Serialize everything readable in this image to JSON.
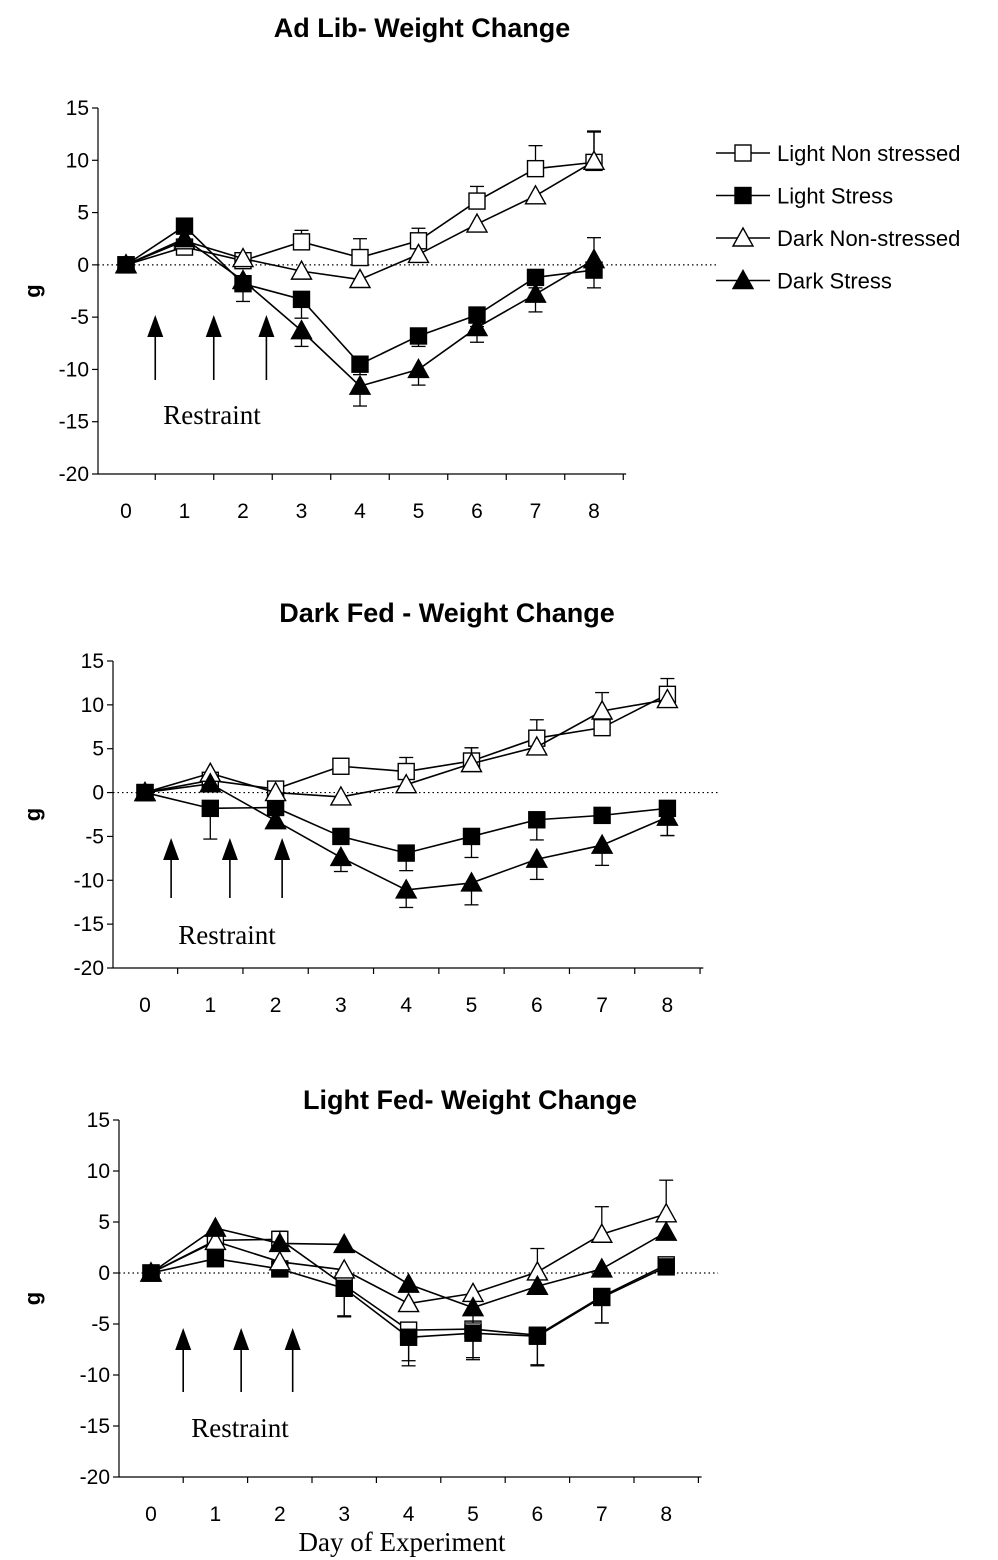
{
  "legend": [
    {
      "name": "Light Non stressed",
      "marker": "square",
      "fill": "#ffffff"
    },
    {
      "name": "Light Stress",
      "marker": "square",
      "fill": "#000000"
    },
    {
      "name": "Dark Non-stressed",
      "marker": "triangle",
      "fill": "#ffffff"
    },
    {
      "name": "Dark Stress",
      "marker": "triangle",
      "fill": "#000000"
    }
  ],
  "xlabel_shared": "Day of Experiment",
  "chart_data": [
    {
      "type": "line",
      "title": "Ad Lib- Weight Change",
      "ylabel": "g",
      "xlabel": "",
      "x": [
        0,
        1,
        2,
        3,
        4,
        5,
        6,
        7,
        8
      ],
      "ylim": [
        -20,
        15
      ],
      "yticks": [
        15,
        10,
        5,
        0,
        -5,
        -10,
        -15,
        -20
      ],
      "annotation": "Restraint",
      "restraint_days": [
        0.5,
        1.5,
        2.4
      ],
      "legend_position": "right",
      "series": [
        {
          "name": "Light Non stressed",
          "values": [
            0,
            1.7,
            0.4,
            2.2,
            0.7,
            2.3,
            6.1,
            9.2,
            9.8
          ],
          "err": [
            0,
            0,
            0,
            1.1,
            1.8,
            1.2,
            1.4,
            2.2,
            2.9
          ]
        },
        {
          "name": "Light Stress",
          "values": [
            0,
            3.7,
            -1.8,
            -3.3,
            -9.5,
            -6.8,
            -4.8,
            -1.2,
            -0.5
          ],
          "err": [
            0,
            0,
            1.7,
            1.8,
            1.0,
            1.0,
            1.1,
            1.0,
            1.7
          ]
        },
        {
          "name": "Dark Non-stressed",
          "values": [
            0,
            2.3,
            0.6,
            -0.6,
            -1.4,
            1.0,
            3.9,
            6.6,
            9.9
          ],
          "err": [
            0,
            0,
            0,
            0,
            0,
            0,
            0,
            0,
            2.9
          ]
        },
        {
          "name": "Dark Stress",
          "values": [
            0,
            2.5,
            -1.5,
            -6.3,
            -11.6,
            -10.0,
            -6.0,
            -2.8,
            0.5
          ],
          "err": [
            0,
            0,
            0,
            1.5,
            1.9,
            1.5,
            1.4,
            1.7,
            2.1
          ]
        }
      ]
    },
    {
      "type": "line",
      "title": "Dark Fed  - Weight Change",
      "ylabel": "g",
      "xlabel": "",
      "x": [
        0,
        1,
        2,
        3,
        4,
        5,
        6,
        7,
        8
      ],
      "ylim": [
        -20,
        15
      ],
      "yticks": [
        15,
        10,
        5,
        0,
        -5,
        -10,
        -15,
        -20
      ],
      "annotation": "Restraint",
      "restraint_days": [
        0.4,
        1.3,
        2.1
      ],
      "series": [
        {
          "name": "Light Non stressed",
          "values": [
            0,
            1.4,
            0.4,
            3.0,
            2.4,
            3.6,
            6.2,
            7.4,
            11.2
          ],
          "err": [
            0,
            0,
            0,
            0,
            1.6,
            1.5,
            2.1,
            0,
            1.8
          ]
        },
        {
          "name": "Light Stress",
          "values": [
            0,
            -1.8,
            -1.7,
            -5.0,
            -6.9,
            -5.0,
            -3.1,
            -2.6,
            -1.8
          ],
          "err": [
            0,
            3.5,
            0,
            0,
            2.0,
            2.4,
            2.3,
            0,
            3.1
          ]
        },
        {
          "name": "Dark Non-stressed",
          "values": [
            0,
            2.2,
            0.0,
            -0.5,
            0.9,
            3.3,
            5.2,
            9.3,
            10.6
          ],
          "err": [
            0,
            0,
            0,
            0,
            0,
            1.8,
            0,
            2.1,
            0
          ]
        },
        {
          "name": "Dark Stress",
          "values": [
            0,
            1.0,
            -3.2,
            -7.4,
            -11.1,
            -10.3,
            -7.6,
            -6.0,
            -2.8
          ],
          "err": [
            0,
            0,
            0,
            1.6,
            2.0,
            2.5,
            2.3,
            2.3,
            2.1
          ]
        }
      ]
    },
    {
      "type": "line",
      "title": "Light Fed- Weight Change",
      "ylabel": "g",
      "xlabel": "Day of Experiment",
      "x": [
        0,
        1,
        2,
        3,
        4,
        5,
        6,
        7,
        8
      ],
      "ylim": [
        -20,
        15
      ],
      "yticks": [
        15,
        10,
        5,
        0,
        -5,
        -10,
        -15,
        -20
      ],
      "annotation": "Restraint",
      "restraint_days": [
        0.5,
        1.4,
        2.2
      ],
      "series": [
        {
          "name": "Light Non stressed",
          "values": [
            0,
            3.2,
            3.3,
            -1.2,
            -5.6,
            -5.5,
            -6.1,
            -2.3,
            0.8
          ],
          "err": [
            0,
            0,
            0,
            3.0,
            3.0,
            2.8,
            2.9,
            2.6,
            0
          ]
        },
        {
          "name": "Light Stress",
          "values": [
            0,
            1.4,
            0.4,
            -1.5,
            -6.3,
            -5.9,
            -6.2,
            -2.4,
            0.6
          ],
          "err": [
            0,
            0,
            2.0,
            2.8,
            2.8,
            2.6,
            2.9,
            2.5,
            0
          ]
        },
        {
          "name": "Dark Non-stressed",
          "values": [
            0,
            3.1,
            1.1,
            0.3,
            -3.0,
            -2.0,
            0.1,
            3.8,
            5.8
          ],
          "err": [
            0,
            0,
            0,
            0,
            0,
            2.9,
            2.3,
            2.7,
            3.3
          ]
        },
        {
          "name": "Dark Stress",
          "values": [
            0,
            4.4,
            2.9,
            2.8,
            -1.1,
            -3.4,
            -1.3,
            0.4,
            4.0
          ],
          "err": [
            0,
            0,
            1.2,
            0,
            0,
            0,
            0,
            0,
            0
          ]
        }
      ]
    }
  ]
}
